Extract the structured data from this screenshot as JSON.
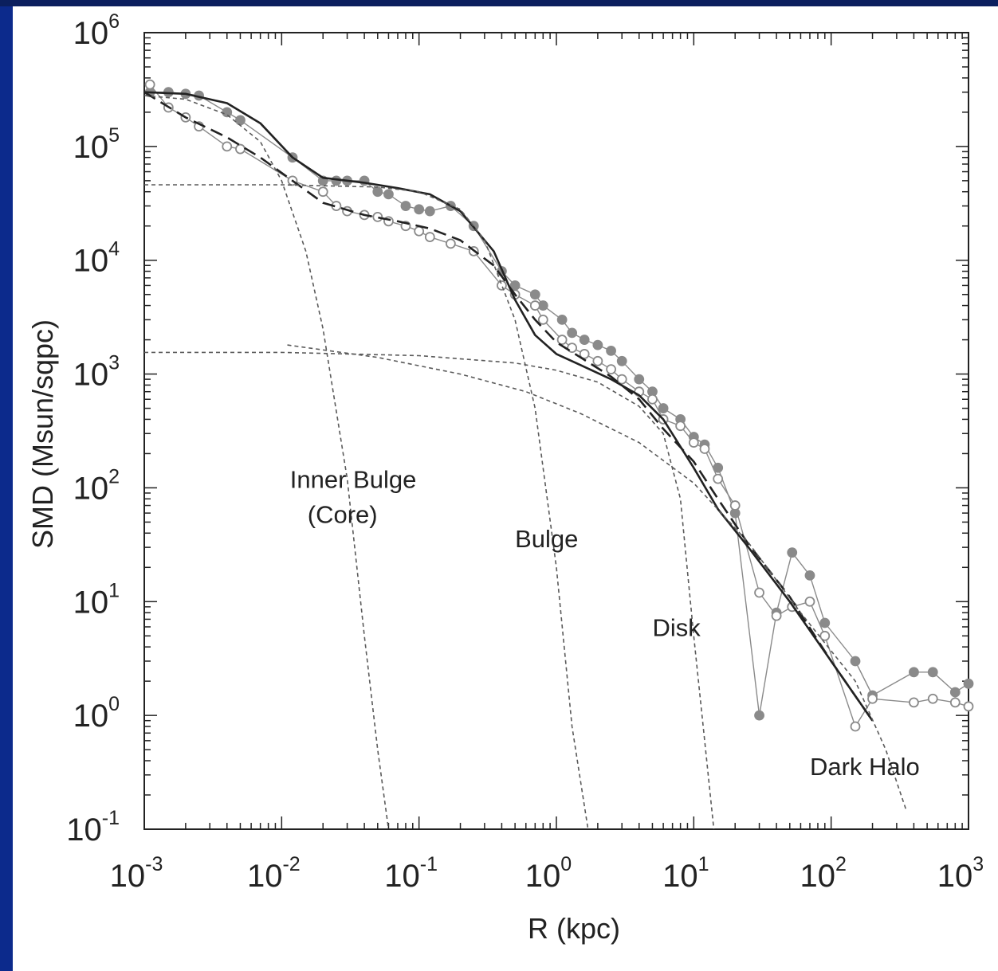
{
  "chart_data": {
    "type": "line",
    "title": "",
    "xlabel": "R (kpc)",
    "ylabel": "SMD (Msun/sqpc)",
    "x_scale": "log",
    "y_scale": "log",
    "xlim": [
      0.001,
      1000
    ],
    "ylim": [
      0.1,
      1000000
    ],
    "grid": false,
    "x_ticks": [
      {
        "mant": "10",
        "exp": "-3",
        "value": 0.001
      },
      {
        "mant": "10",
        "exp": "-2",
        "value": 0.01
      },
      {
        "mant": "10",
        "exp": "-1",
        "value": 0.1
      },
      {
        "mant": "10",
        "exp": "0",
        "value": 1
      },
      {
        "mant": "10",
        "exp": "1",
        "value": 10
      },
      {
        "mant": "10",
        "exp": "2",
        "value": 100
      },
      {
        "mant": "10",
        "exp": "3",
        "value": 1000
      }
    ],
    "y_ticks": [
      {
        "mant": "10",
        "exp": "-1",
        "value": 0.1
      },
      {
        "mant": "10",
        "exp": "0",
        "value": 1
      },
      {
        "mant": "10",
        "exp": "1",
        "value": 10
      },
      {
        "mant": "10",
        "exp": "2",
        "value": 100
      },
      {
        "mant": "10",
        "exp": "3",
        "value": 1000
      },
      {
        "mant": "10",
        "exp": "4",
        "value": 10000
      },
      {
        "mant": "10",
        "exp": "5",
        "value": 100000
      },
      {
        "mant": "10",
        "exp": "6",
        "value": 1000000
      }
    ],
    "series": [
      {
        "style": "filled-circles",
        "color": "#8a8a8a",
        "x": [
          0.0011,
          0.0015,
          0.002,
          0.0025,
          0.004,
          0.005,
          0.012,
          0.02,
          0.025,
          0.03,
          0.04,
          0.05,
          0.06,
          0.08,
          0.1,
          0.12,
          0.17,
          0.25,
          0.4,
          0.5,
          0.7,
          0.8,
          1.1,
          1.3,
          1.6,
          2.0,
          2.5,
          3.0,
          4.0,
          5.0,
          6.0,
          8.0,
          10.0,
          12.0,
          15.0,
          20.0,
          30.0,
          40.0,
          52.0,
          70.0,
          90.0,
          150.0,
          200.0,
          400.0,
          550.0,
          800.0,
          1000.0
        ],
        "y": [
          300000,
          300000,
          290000,
          280000,
          200000,
          170000,
          80000,
          50000,
          50000,
          50000,
          50000,
          40000,
          38000,
          30000,
          28000,
          27000,
          30000,
          20000,
          8000,
          6000,
          5000,
          4000,
          3000,
          2300,
          2000,
          1800,
          1600,
          1300,
          900,
          700,
          500,
          400,
          280,
          240,
          150,
          60,
          1.0,
          8,
          27,
          17,
          6.5,
          3.0,
          1.5,
          2.4,
          2.4,
          1.6,
          1.9
        ]
      },
      {
        "style": "open-circles",
        "color": "#8a8a8a",
        "x": [
          0.0011,
          0.0015,
          0.002,
          0.0025,
          0.004,
          0.005,
          0.012,
          0.02,
          0.025,
          0.03,
          0.04,
          0.05,
          0.06,
          0.08,
          0.1,
          0.12,
          0.17,
          0.25,
          0.4,
          0.5,
          0.7,
          0.8,
          1.1,
          1.3,
          1.6,
          2.0,
          2.5,
          3.0,
          4.0,
          5.0,
          6.0,
          8.0,
          10.0,
          12.0,
          15.0,
          20.0,
          30.0,
          40.0,
          52.0,
          70.0,
          90.0,
          150.0,
          200.0,
          400.0,
          550.0,
          800.0,
          1000.0
        ],
        "y": [
          350000,
          220000,
          180000,
          150000,
          100000,
          95000,
          50000,
          40000,
          30000,
          27000,
          25000,
          24000,
          22000,
          20000,
          18000,
          16000,
          14000,
          12000,
          6000,
          5000,
          4000,
          3000,
          2000,
          1700,
          1500,
          1300,
          1100,
          900,
          700,
          600,
          400,
          350,
          250,
          220,
          120,
          70,
          12,
          7.5,
          9,
          10,
          5,
          0.8,
          1.4,
          1.3,
          1.4,
          1.3,
          1.2
        ]
      },
      {
        "style": "solid",
        "color": "#222222",
        "x": [
          0.001,
          0.002,
          0.004,
          0.007,
          0.012,
          0.02,
          0.04,
          0.07,
          0.12,
          0.2,
          0.35,
          0.5,
          0.7,
          1.0,
          1.5,
          2.5,
          4.0,
          6.0,
          10.0,
          15.0,
          25.0,
          50.0,
          100.0,
          200.0
        ],
        "y": [
          300000,
          290000,
          240000,
          160000,
          80000,
          53000,
          48000,
          43000,
          38000,
          27000,
          12000,
          4500,
          2200,
          1500,
          1200,
          900,
          650,
          400,
          150,
          65,
          30,
          10,
          3,
          0.9
        ]
      },
      {
        "style": "long-dash",
        "color": "#222222",
        "x": [
          0.001,
          0.002,
          0.004,
          0.007,
          0.012,
          0.02,
          0.04,
          0.07,
          0.12,
          0.2,
          0.35,
          0.5,
          0.7,
          1.0,
          1.5,
          2.5,
          4.0,
          6.0,
          10.0,
          15.0,
          25.0,
          50.0,
          100.0,
          200.0
        ],
        "y": [
          300000,
          180000,
          120000,
          80000,
          50000,
          32000,
          25000,
          22000,
          19000,
          15000,
          9000,
          5000,
          3000,
          1900,
          1400,
          950,
          600,
          330,
          170,
          80,
          32,
          11,
          3,
          0.9
        ]
      },
      {
        "style": "short-dash",
        "name": "Inner Bulge (Core)",
        "color": "#5a5a5a",
        "x": [
          0.001,
          0.002,
          0.004,
          0.007,
          0.01,
          0.015,
          0.02,
          0.03,
          0.04,
          0.05,
          0.06
        ],
        "y": [
          280000,
          260000,
          190000,
          110000,
          50000,
          12000,
          2500,
          120,
          5,
          0.5,
          0.1
        ]
      },
      {
        "style": "short-dash",
        "name": "Bulge",
        "color": "#5a5a5a",
        "x": [
          0.001,
          0.01,
          0.05,
          0.1,
          0.2,
          0.3,
          0.5,
          0.7,
          1.0,
          1.3,
          1.7
        ],
        "y": [
          46000,
          46000,
          44000,
          40000,
          28000,
          15000,
          3000,
          500,
          20,
          0.8,
          0.1
        ]
      },
      {
        "style": "short-dash",
        "name": "Disk",
        "color": "#5a5a5a",
        "x": [
          0.001,
          0.01,
          0.1,
          0.5,
          1.0,
          2.0,
          4.0,
          6.0,
          8.0,
          10.0,
          12.0,
          14.0
        ],
        "y": [
          1550,
          1550,
          1450,
          1250,
          1080,
          850,
          520,
          300,
          80,
          5,
          0.6,
          0.1
        ]
      },
      {
        "style": "short-dash",
        "name": "Dark Halo",
        "color": "#5a5a5a",
        "x": [
          0.011,
          0.05,
          0.2,
          0.6,
          1.5,
          4.0,
          10.0,
          25.0,
          60.0,
          150.0,
          250.0,
          350.0
        ],
        "y": [
          1800,
          1400,
          1000,
          700,
          450,
          250,
          110,
          33,
          8,
          2,
          0.5,
          0.15
        ]
      }
    ],
    "annotations": [
      {
        "lines": [
          "Inner Bulge",
          "(Core)"
        ],
        "x": 0.0115,
        "y": 100
      },
      {
        "lines": [
          "Bulge"
        ],
        "x": 0.5,
        "y": 30
      },
      {
        "lines": [
          "Disk"
        ],
        "x": 5.0,
        "y": 5
      },
      {
        "lines": [
          "Dark Halo"
        ],
        "x": 70.0,
        "y": 0.3
      }
    ]
  }
}
